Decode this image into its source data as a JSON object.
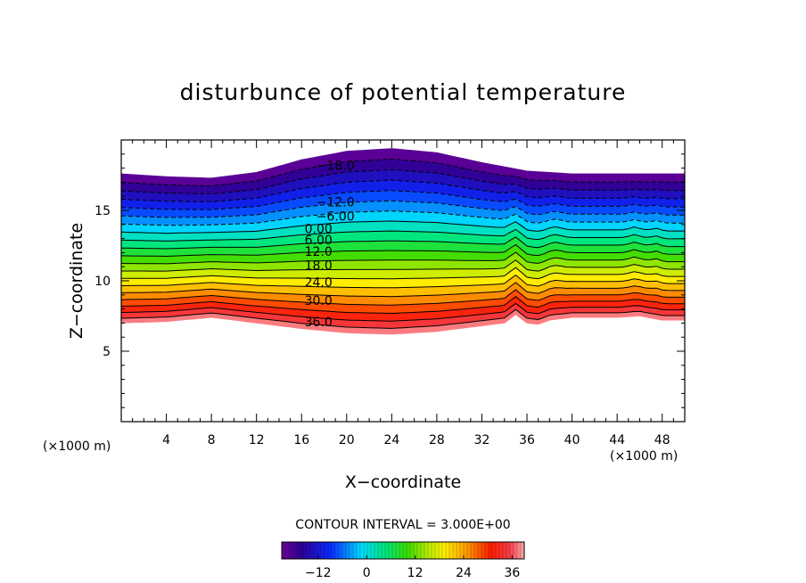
{
  "chart_data": {
    "type": "contour",
    "title": "disturbunce of potential temperature",
    "xlabel": "X−coordinate",
    "ylabel": "Z−coordinate",
    "x_unit_left": "(×1000 m)",
    "x_unit_right": "(×1000 m)",
    "xlim": [
      0,
      50
    ],
    "ylim": [
      0,
      20
    ],
    "x_ticks": [
      4,
      8,
      12,
      16,
      20,
      24,
      28,
      32,
      36,
      40,
      44,
      48
    ],
    "x_tick_labels": [
      "4",
      "8",
      "12",
      "16",
      "20",
      "24",
      "28",
      "32",
      "36",
      "40",
      "44",
      "48"
    ],
    "y_ticks": [
      5,
      10,
      15
    ],
    "y_tick_labels": [
      "5",
      "10",
      "15"
    ],
    "contour_interval": 3,
    "contour_interval_text": "CONTOUR INTERVAL = 3.000E+00",
    "value_range": [
      -21,
      39
    ],
    "top_boundary": {
      "x": [
        0,
        4,
        8,
        12,
        16,
        20,
        24,
        28,
        32,
        36,
        40,
        44,
        48,
        50
      ],
      "z": [
        17.6,
        17.4,
        17.3,
        17.7,
        18.6,
        19.2,
        19.4,
        19.1,
        18.4,
        17.8,
        17.6,
        17.6,
        17.6,
        17.6
      ]
    },
    "bottom_boundary": {
      "x": [
        0,
        4,
        8,
        12,
        16,
        20,
        24,
        28,
        32,
        34,
        35,
        36,
        37,
        38,
        40,
        44,
        46,
        48,
        50
      ],
      "z": [
        7.0,
        7.1,
        7.4,
        7.0,
        6.6,
        6.3,
        6.2,
        6.4,
        6.8,
        7.0,
        7.6,
        7.0,
        6.9,
        7.2,
        7.4,
        7.4,
        7.5,
        7.2,
        7.2
      ]
    },
    "contour_labels": [
      {
        "text": "−18.0",
        "x": 19.0,
        "z": 18.2
      },
      {
        "text": "−12.0",
        "x": 19.0,
        "z": 15.6
      },
      {
        "text": "−6.00",
        "x": 19.0,
        "z": 14.6
      },
      {
        "text": "0.00",
        "x": 17.5,
        "z": 13.7
      },
      {
        "text": "6.00",
        "x": 17.5,
        "z": 12.9
      },
      {
        "text": "12.0",
        "x": 17.5,
        "z": 12.1
      },
      {
        "text": "18.0",
        "x": 17.5,
        "z": 11.1
      },
      {
        "text": "24.0",
        "x": 17.5,
        "z": 9.9
      },
      {
        "text": "30.0",
        "x": 17.5,
        "z": 8.6
      },
      {
        "text": "36.0",
        "x": 17.5,
        "z": 7.1
      }
    ],
    "colorbar": {
      "ticks": [
        -12,
        0,
        12,
        24,
        36
      ],
      "tick_labels": [
        "−12",
        "0",
        "12",
        "24",
        "36"
      ]
    }
  }
}
